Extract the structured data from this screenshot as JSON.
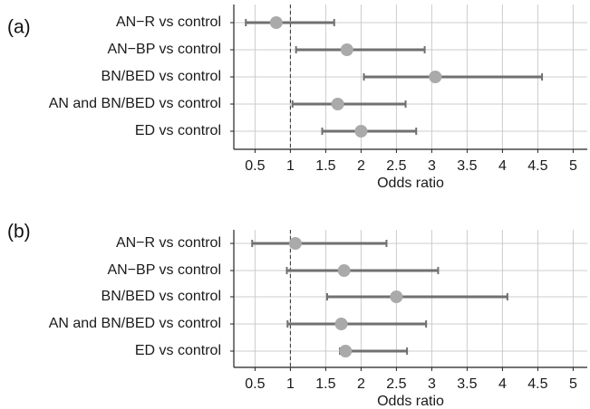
{
  "chart_data": [
    {
      "type": "forest",
      "panel_label": "(a)",
      "xlabel": "Odds ratio",
      "xlim": [
        0.2,
        5.2
      ],
      "xticks": [
        0.5,
        1,
        1.5,
        2,
        2.5,
        3,
        3.5,
        4,
        4.5,
        5
      ],
      "xtick_labels": [
        "0.5",
        "1",
        "1.5",
        "2",
        "2.5",
        "3",
        "3.5",
        "4",
        "4.5",
        "5"
      ],
      "reference_line": 1,
      "grid": true,
      "categories": [
        "AN−R vs control",
        "AN−BP vs control",
        "BN/BED vs control",
        "AN and BN/BED vs control",
        "ED vs control"
      ],
      "estimate": [
        0.8,
        1.8,
        3.05,
        1.67,
        2.0
      ],
      "lower": [
        0.37,
        1.08,
        2.04,
        1.03,
        1.45
      ],
      "upper": [
        1.62,
        2.9,
        4.56,
        2.63,
        2.78
      ]
    },
    {
      "type": "forest",
      "panel_label": "(b)",
      "xlabel": "Odds ratio",
      "xlim": [
        0.2,
        5.2
      ],
      "xticks": [
        0.5,
        1,
        1.5,
        2,
        2.5,
        3,
        3.5,
        4,
        4.5,
        5
      ],
      "xtick_labels": [
        "0.5",
        "1",
        "1.5",
        "2",
        "2.5",
        "3",
        "3.5",
        "4",
        "4.5",
        "5"
      ],
      "reference_line": 1,
      "grid": true,
      "categories": [
        "AN−R vs control",
        "AN−BP vs control",
        "BN/BED vs control",
        "AN and BN/BED vs control",
        "ED vs control"
      ],
      "estimate": [
        1.07,
        1.76,
        2.5,
        1.72,
        1.78
      ],
      "lower": [
        0.46,
        0.95,
        1.52,
        0.96,
        1.7
      ],
      "upper": [
        2.36,
        3.09,
        4.07,
        2.92,
        2.65
      ]
    }
  ],
  "colors": {
    "point": "#aaaaaa",
    "whisker": "#707070",
    "grid": "#cccccc",
    "axis": "#222222",
    "reference_line": "#333333"
  }
}
